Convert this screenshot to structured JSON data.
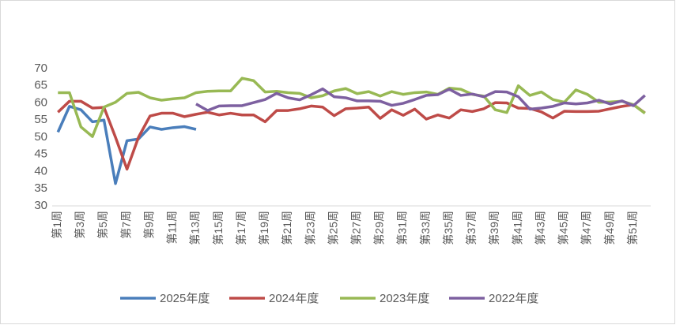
{
  "chart_data": {
    "type": "line",
    "categories": [
      "第1周",
      null,
      "第3周",
      null,
      "第5周",
      null,
      "第7周",
      null,
      "第9周",
      null,
      "第11周",
      null,
      "第13周",
      null,
      "第15周",
      null,
      "第17周",
      null,
      "第19周",
      null,
      "第21周",
      null,
      "第23周",
      null,
      "第25周",
      null,
      "第27周",
      null,
      "第29周",
      null,
      "第31周",
      null,
      "第33周",
      null,
      "第35周",
      null,
      "第37周",
      null,
      "第39周",
      null,
      "第41周",
      null,
      "第43周",
      null,
      "第45周",
      null,
      "第47周",
      null,
      "第49周",
      null,
      "第51周",
      null
    ],
    "series": [
      {
        "name": "2025年度",
        "color": "#4a7ebb",
        "values": [
          51.5,
          59,
          58,
          54.5,
          55,
          36.5,
          49,
          49.5,
          53,
          52.3,
          52.8,
          53.1,
          52.3,
          null,
          null,
          null,
          null,
          null,
          null,
          null,
          null,
          null,
          null,
          null,
          null,
          null,
          null,
          null,
          null,
          null,
          null,
          null,
          null,
          null,
          null,
          null,
          null,
          null,
          null,
          null,
          null,
          null,
          null,
          null,
          null,
          null,
          null,
          null,
          null,
          null,
          null,
          null
        ]
      },
      {
        "name": "2024年度",
        "color": "#be4b48",
        "values": [
          57.3,
          60.5,
          60.5,
          58.5,
          58.7,
          50,
          40.7,
          50,
          56.2,
          57,
          57,
          56,
          56.7,
          57.3,
          56.5,
          57,
          56.5,
          56.5,
          54.5,
          57.8,
          57.8,
          58.3,
          59.1,
          58.8,
          56.3,
          58.3,
          58.5,
          58.8,
          55.5,
          58,
          56.4,
          58.2,
          55.3,
          56.5,
          55.6,
          58,
          57.5,
          58.3,
          60.1,
          60,
          58.5,
          58.4,
          57.4,
          55.6,
          57.6,
          57.5,
          57.5,
          57.6,
          58.3,
          59,
          59.5,
          57.1
        ]
      },
      {
        "name": "2023年度",
        "color": "#98b954",
        "values": [
          63,
          63,
          53,
          50.2,
          58.8,
          60.2,
          62.8,
          63.1,
          61.5,
          60.8,
          61.2,
          61.5,
          63,
          63.4,
          63.5,
          63.5,
          67.2,
          66.5,
          63.2,
          63.4,
          63,
          62.8,
          61.5,
          62.1,
          63.5,
          64.2,
          62.7,
          63.3,
          62,
          63.3,
          62.5,
          63,
          63.2,
          62.5,
          64.3,
          64,
          62.5,
          62,
          58,
          57.2,
          65,
          62.2,
          63.2,
          61,
          60.2,
          63.8,
          62.5,
          60.2,
          60.3,
          60.5,
          59.5,
          57
        ]
      },
      {
        "name": "2022年度",
        "color": "#7d60a0",
        "values": [
          null,
          null,
          null,
          null,
          null,
          null,
          null,
          null,
          null,
          null,
          null,
          null,
          59.7,
          57.8,
          59.1,
          59.2,
          59.2,
          60.1,
          61,
          62.8,
          61.5,
          60.9,
          62.4,
          64.1,
          61.8,
          61.5,
          60.6,
          60.6,
          60.5,
          59.3,
          59.9,
          61,
          62.2,
          62.4,
          64,
          62.2,
          62.6,
          61.8,
          63.3,
          63.2,
          61.8,
          58.2,
          58.5,
          59,
          60,
          59.7,
          60,
          60.8,
          59.7,
          60.6,
          59.2,
          62.2
        ]
      }
    ],
    "ylim": [
      30,
      70
    ],
    "yticks": [
      30,
      35,
      40,
      45,
      50,
      55,
      60,
      65,
      70
    ],
    "grid": false,
    "legend": "bottom"
  }
}
